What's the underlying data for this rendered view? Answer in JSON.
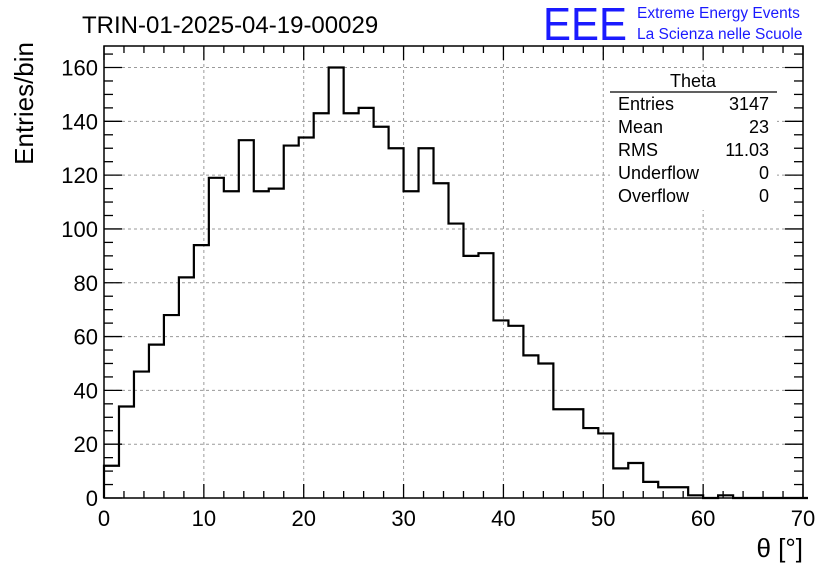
{
  "chart_data": {
    "type": "bar",
    "style": "step-histogram",
    "title": "TRIN-01-2025-04-19-00029",
    "xlabel": "θ [°]",
    "ylabel": "Entries/bin",
    "xlim": [
      0,
      70
    ],
    "ylim": [
      0,
      168
    ],
    "x_ticks": [
      0,
      10,
      20,
      30,
      40,
      50,
      60,
      70
    ],
    "y_ticks": [
      0,
      20,
      40,
      60,
      80,
      100,
      120,
      140,
      160
    ],
    "grid": true,
    "bin_width": 1.5,
    "bin_edges_start": 0,
    "values": [
      12,
      34,
      47,
      57,
      68,
      82,
      94,
      119,
      114,
      133,
      114,
      115,
      131,
      134,
      143,
      160,
      143,
      145,
      138,
      130,
      114,
      130,
      117,
      102,
      90,
      91,
      66,
      64,
      53,
      50,
      33,
      33,
      26,
      24,
      11,
      13,
      6,
      4,
      4,
      1,
      0,
      1,
      0,
      0,
      0,
      0,
      0
    ],
    "color": "#000000"
  },
  "stats_box": {
    "title": "Theta",
    "rows": [
      {
        "label": "Entries",
        "value": "3147"
      },
      {
        "label": "Mean",
        "value": "23"
      },
      {
        "label": "RMS",
        "value": "11.03"
      },
      {
        "label": "Underflow",
        "value": "0"
      },
      {
        "label": "Overflow",
        "value": "0"
      }
    ]
  },
  "logo": {
    "mark": "EEE",
    "line1": "Extreme Energy Events",
    "line2": "La Scienza nelle Scuole",
    "color": "#1a1aff"
  }
}
